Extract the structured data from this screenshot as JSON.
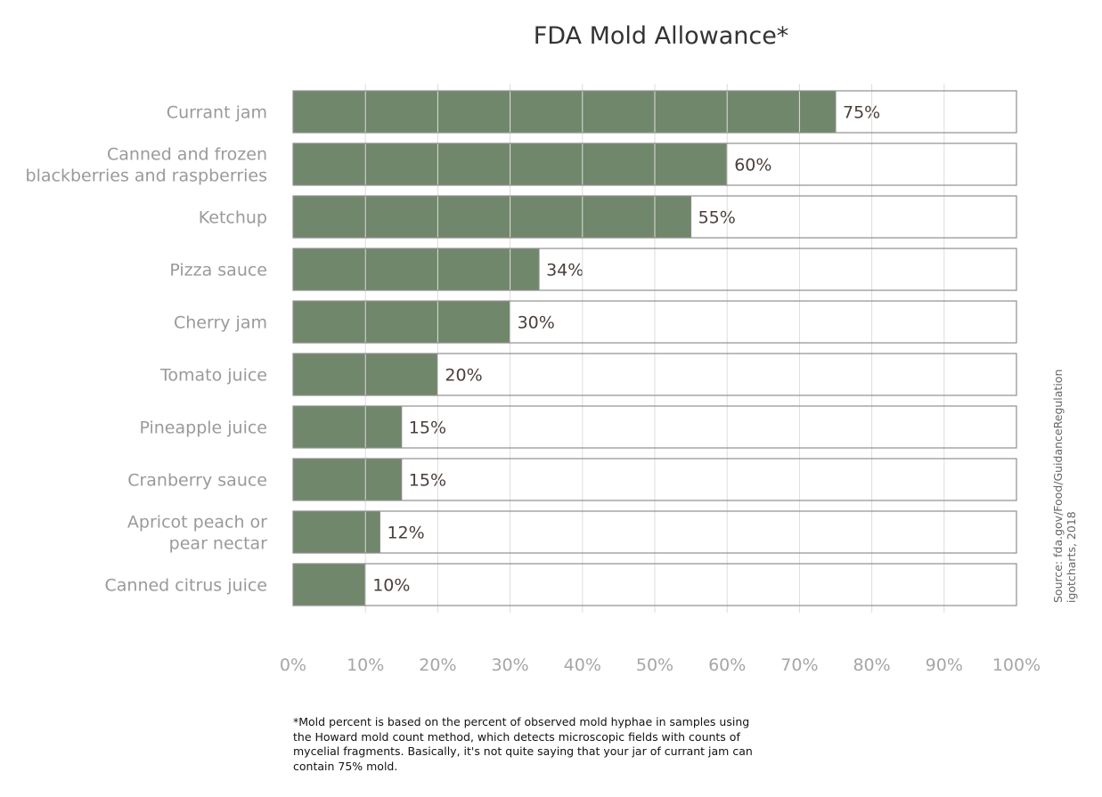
{
  "chart_data": {
    "type": "bar",
    "orientation": "horizontal",
    "title": "FDA Mold Allowance*",
    "categories": [
      [
        "Currant jam"
      ],
      [
        "Canned and frozen",
        "blackberries and raspberries"
      ],
      [
        "Ketchup"
      ],
      [
        "Pizza sauce"
      ],
      [
        "Cherry jam"
      ],
      [
        "Tomato juice"
      ],
      [
        "Pineapple juice"
      ],
      [
        "Cranberry sauce"
      ],
      [
        "Apricot peach or",
        "pear nectar"
      ],
      [
        "Canned citrus juice"
      ]
    ],
    "values": [
      75,
      60,
      55,
      34,
      30,
      20,
      15,
      15,
      12,
      10
    ],
    "value_labels": [
      "75%",
      "60%",
      "55%",
      "34%",
      "30%",
      "20%",
      "15%",
      "15%",
      "12%",
      "10%"
    ],
    "xlim": [
      0,
      100
    ],
    "xticks": [
      0,
      10,
      20,
      30,
      40,
      50,
      60,
      70,
      80,
      90,
      100
    ],
    "xtick_labels": [
      "0%",
      "10%",
      "20%",
      "30%",
      "40%",
      "50%",
      "60%",
      "70%",
      "80%",
      "90%",
      "100%"
    ],
    "grid": "vertical",
    "bar_color": "#71876b",
    "track_border_color": "#8f8f8f",
    "source_lines": [
      "Source: fda.gov/Food/GuidanceRegulation",
      "igotcharts, 2018"
    ],
    "footnote": "*Mold percent is based on the percent of observed mold hyphae in samples using the Howard mold count method, which detects microscopic fields with counts of mycelial fragments. Basically, it's not quite saying that your jar of currant jam can contain 75% mold."
  }
}
